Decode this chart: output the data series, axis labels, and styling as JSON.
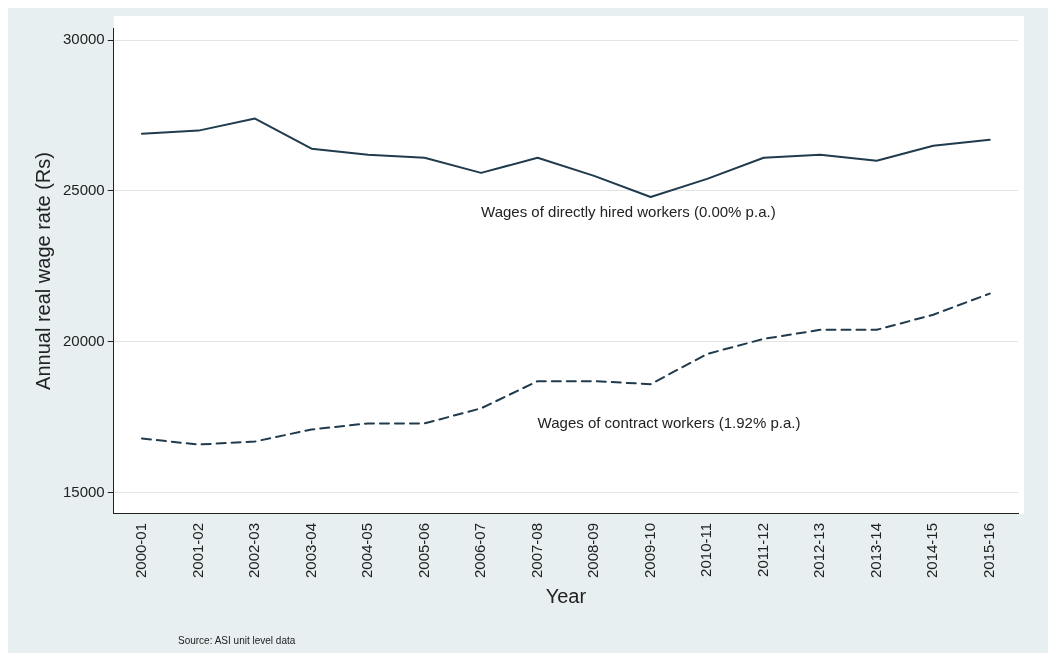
{
  "chart_data": {
    "type": "line",
    "xlabel": "Year",
    "ylabel": "Annual real wage rate (Rs)",
    "categories": [
      "2000-01",
      "2001-02",
      "2002-03",
      "2003-04",
      "2004-05",
      "2005-06",
      "2006-07",
      "2007-08",
      "2008-09",
      "2009-10",
      "2010-11",
      "2011-12",
      "2012-13",
      "2013-14",
      "2014-15",
      "2015-16"
    ],
    "series": [
      {
        "name": "Wages of directly hired workers (0.00% p.a.)",
        "color": "#1f3b4d",
        "line_style": "solid",
        "values": [
          26900,
          27000,
          27400,
          26400,
          26200,
          26100,
          25600,
          26100,
          25500,
          24800,
          25400,
          26100,
          26200,
          26000,
          26500,
          26700
        ]
      },
      {
        "name": "Wages of contract workers (1.92% p.a.)",
        "color": "#1f3b4d",
        "line_style": "dashed",
        "values": [
          16800,
          16600,
          16700,
          17100,
          17300,
          17300,
          17800,
          18700,
          18700,
          18600,
          19600,
          20100,
          20400,
          20400,
          20900,
          21600
        ]
      }
    ],
    "ylim": [
      14300,
      30400
    ],
    "yticks": [
      15000,
      20000,
      25000,
      30000
    ],
    "grid": "y",
    "legend": false,
    "marker": "none",
    "annotations": [
      "Source: ASI unit level data"
    ]
  }
}
